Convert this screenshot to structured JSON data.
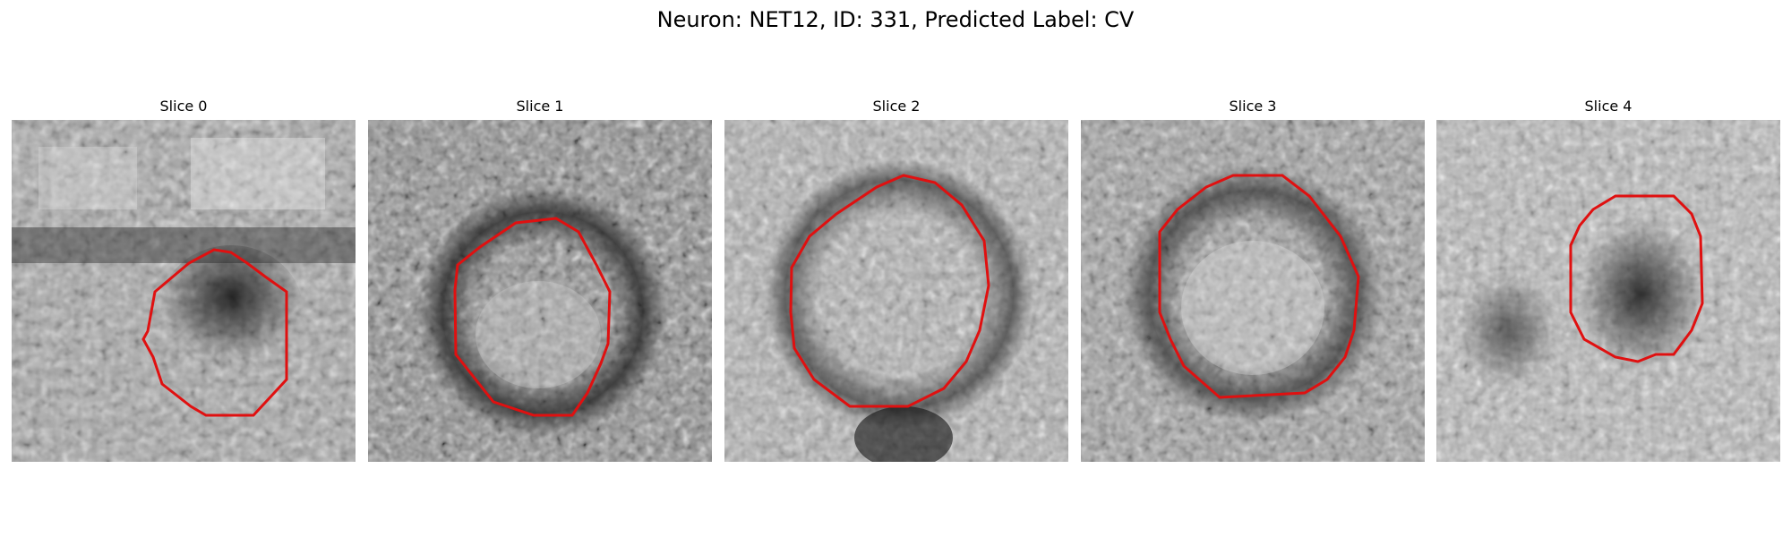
{
  "figure": {
    "title": "Neuron: NET12, ID: 331, Predicted Label: CV"
  },
  "panels": [
    {
      "title": "Slice 0"
    },
    {
      "title": "Slice 1"
    },
    {
      "title": "Slice 2"
    },
    {
      "title": "Slice 3"
    },
    {
      "title": "Slice 4"
    }
  ],
  "colors": {
    "contour": "#e01010",
    "colormap": "grayscale"
  }
}
